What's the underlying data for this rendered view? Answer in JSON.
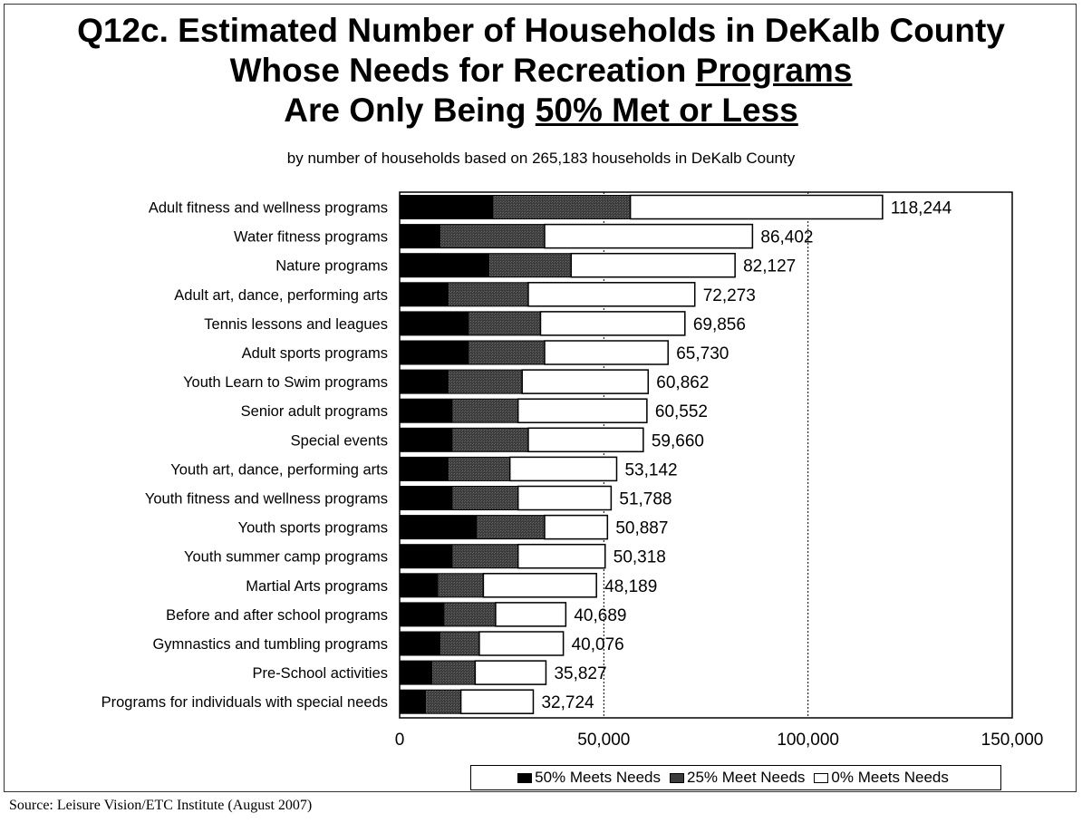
{
  "title": {
    "line1": "Q12c. Estimated Number of Households in DeKalb County",
    "line2_pre": "Whose Needs for Recreation ",
    "line2_u": "Programs",
    "line3_pre": "Are Only Being ",
    "line3_u": "50% Met or Less"
  },
  "subtitle": "by number of households based on 265,183 households in DeKalb County",
  "source": "Source:  Leisure Vision/ETC Institute (August 2007)",
  "colors": {
    "met50": "#000000",
    "met25": "#3a3a3a",
    "met0": "#ffffff"
  },
  "chart_data": {
    "type": "bar",
    "orientation": "horizontal",
    "stacked": true,
    "categories": [
      "Adult fitness and wellness programs",
      "Water fitness programs",
      "Nature programs",
      "Adult art, dance, performing arts",
      "Tennis lessons and leagues",
      "Adult sports programs",
      "Youth Learn to Swim programs",
      "Senior adult programs",
      "Special events",
      "Youth art, dance, performing arts",
      "Youth fitness and wellness programs",
      "Youth sports programs",
      "Youth summer camp programs",
      "Martial Arts programs",
      "Before and after school programs",
      "Gymnastics and tumbling programs",
      "Pre-School activities",
      "Programs for individuals with special needs"
    ],
    "series": [
      {
        "name": "50% Meets Needs",
        "values": [
          23000,
          10000,
          22000,
          12000,
          17000,
          17000,
          12000,
          13000,
          13000,
          12000,
          13000,
          19000,
          13000,
          9500,
          11000,
          10000,
          8000,
          6500
        ]
      },
      {
        "name": "25% Meet Needs",
        "values": [
          33500,
          25500,
          20000,
          19500,
          17500,
          18500,
          18000,
          16000,
          18500,
          15000,
          16000,
          16500,
          16000,
          11000,
          12500,
          9500,
          10500,
          8500
        ]
      },
      {
        "name": "0% Meets Needs",
        "values": [
          61744,
          50902,
          40127,
          40773,
          35356,
          30230,
          30862,
          31552,
          28160,
          26142,
          22788,
          15387,
          21318,
          27689,
          17189,
          20576,
          17327,
          17724
        ]
      }
    ],
    "totals": [
      118244,
      86402,
      82127,
      72273,
      69856,
      65730,
      60862,
      60552,
      59660,
      53142,
      51788,
      50887,
      50318,
      48189,
      40689,
      40076,
      35827,
      32724
    ],
    "total_labels": [
      "118,244",
      "86,402",
      "82,127",
      "72,273",
      "69,856",
      "65,730",
      "60,862",
      "60,552",
      "59,660",
      "53,142",
      "51,788",
      "50,887",
      "50,318",
      "48,189",
      "40,689",
      "40,076",
      "35,827",
      "32,724"
    ],
    "xlim": [
      0,
      150000
    ],
    "xticks": [
      0,
      50000,
      100000,
      150000
    ],
    "xtick_labels": [
      "0",
      "50,000",
      "100,000",
      "150,000"
    ],
    "reference_lines": [
      50000,
      100000
    ],
    "legend_position": "bottom-right"
  }
}
